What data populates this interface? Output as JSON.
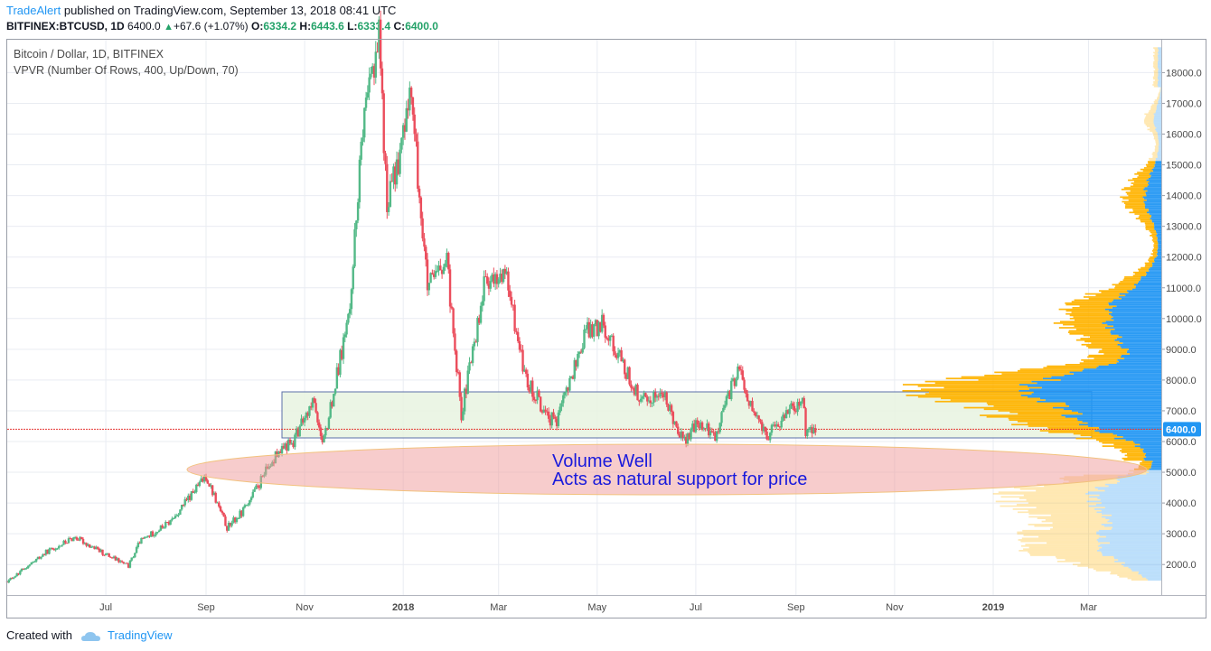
{
  "header": {
    "author": "TradeAlert",
    "published_text": "published on TradingView.com, September 13, 2018 08:41 UTC",
    "symbol": "BITFINEX:BTCUSD, 1D",
    "last": "6400.0",
    "change": "+67.6 (+1.07%)",
    "o_label": "O:",
    "o_val": "6334.2",
    "h_label": "H:",
    "h_val": "6443.6",
    "l_label": "L:",
    "l_val": "6333.4",
    "c_label": "C:",
    "c_val": "6400.0"
  },
  "legend": {
    "title": "Bitcoin / Dollar, 1D, BITFINEX",
    "indicator": "VPVR (Number Of Rows, 400, Up/Down, 70)"
  },
  "annotation": {
    "line1": "Volume Well",
    "line2": "Acts as natural support for price"
  },
  "price_tag": "6400.0",
  "footer": {
    "created": "Created with",
    "brand": "TradingView"
  },
  "colors": {
    "up": "#53b987",
    "down": "#eb4d5c",
    "price_line": "#e53935",
    "vol_up": "#2196f3",
    "vol_down": "#ffb300",
    "box_fill": "#e8f3e0",
    "ellipse_fill": "#ef9a9a",
    "annotation_text": "#1a1adc"
  },
  "chart_data": {
    "type": "candlestick",
    "symbol": "BTCUSD",
    "interval": "1D",
    "x_axis_labels": [
      "Jul",
      "Sep",
      "Nov",
      "2018",
      "Mar",
      "May",
      "Jul",
      "Sep",
      "Nov",
      "2019",
      "Mar"
    ],
    "y_axis_ticks": [
      "2000.0",
      "3000.0",
      "4000.0",
      "5000.0",
      "6000.0",
      "7000.0",
      "8000.0",
      "9000.0",
      "10000.0",
      "11000.0",
      "12000.0",
      "13000.0",
      "14000.0",
      "15000.0",
      "16000.0",
      "17000.0",
      "18000.0"
    ],
    "ylim": [
      1000,
      19000
    ],
    "date_range": [
      "2017-05-01",
      "2019-04-15"
    ],
    "last_price": 6400.0,
    "price_path": [
      [
        "2017-05-01",
        1450
      ],
      [
        "2017-05-25",
        2400
      ],
      [
        "2017-06-12",
        2900
      ],
      [
        "2017-06-25",
        2500
      ],
      [
        "2017-07-15",
        1950
      ],
      [
        "2017-07-22",
        2750
      ],
      [
        "2017-08-10",
        3400
      ],
      [
        "2017-09-01",
        4900
      ],
      [
        "2017-09-14",
        3200
      ],
      [
        "2017-09-25",
        3800
      ],
      [
        "2017-10-12",
        5400
      ],
      [
        "2017-10-25",
        6000
      ],
      [
        "2017-11-07",
        7400
      ],
      [
        "2017-11-12",
        5800
      ],
      [
        "2017-11-28",
        10000
      ],
      [
        "2017-12-07",
        16000
      ],
      [
        "2017-12-17",
        19500
      ],
      [
        "2017-12-22",
        13500
      ],
      [
        "2018-01-06",
        17200
      ],
      [
        "2018-01-16",
        11000
      ],
      [
        "2018-01-28",
        11800
      ],
      [
        "2018-02-06",
        6900
      ],
      [
        "2018-02-20",
        11000
      ],
      [
        "2018-03-05",
        11500
      ],
      [
        "2018-03-18",
        8000
      ],
      [
        "2018-04-01",
        6800
      ],
      [
        "2018-04-06",
        6600
      ],
      [
        "2018-04-24",
        9600
      ],
      [
        "2018-05-05",
        9800
      ],
      [
        "2018-05-28",
        7300
      ],
      [
        "2018-06-10",
        7600
      ],
      [
        "2018-06-24",
        6000
      ],
      [
        "2018-07-02",
        6600
      ],
      [
        "2018-07-13",
        6200
      ],
      [
        "2018-07-27",
        8400
      ],
      [
        "2018-08-05",
        7000
      ],
      [
        "2018-08-14",
        6200
      ],
      [
        "2018-08-29",
        7000
      ],
      [
        "2018-09-05",
        7400
      ],
      [
        "2018-09-07",
        6300
      ],
      [
        "2018-09-13",
        6400
      ]
    ],
    "volume_profile_peak_price": 7900,
    "volume_well_price": 5000,
    "support_zone": [
      6100,
      7550
    ]
  }
}
